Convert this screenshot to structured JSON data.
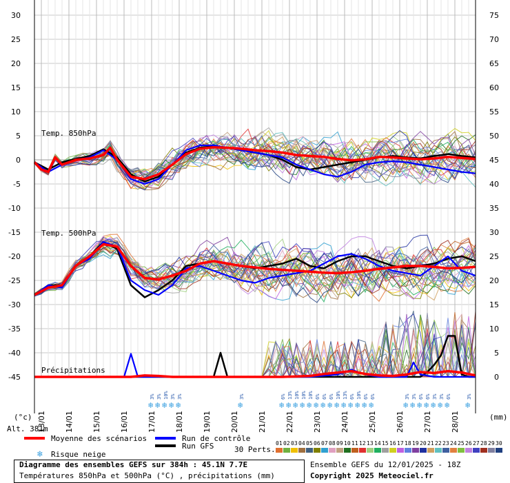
{
  "chart_data": {
    "type": "line",
    "y_left_ticks": [
      "30",
      "25",
      "20",
      "15",
      "10",
      "5",
      "0",
      "-5",
      "-10",
      "-15",
      "-20",
      "-25",
      "-30",
      "-35",
      "-40",
      "-45"
    ],
    "y_right_ticks": [
      "75",
      "70",
      "65",
      "60",
      "55",
      "50",
      "45",
      "40",
      "35",
      "30",
      "25",
      "20",
      "15",
      "10",
      "5",
      "0"
    ],
    "y_left_unit": "(°c)",
    "y_right_unit": "(mm)",
    "altitude_label": "Alt. 381m",
    "dates": [
      "13/01",
      "14/01",
      "15/01",
      "16/01",
      "17/01",
      "18/01",
      "19/01",
      "20/01",
      "21/01",
      "22/01",
      "23/01",
      "24/01",
      "25/01",
      "26/01",
      "27/01",
      "28/01"
    ],
    "section_labels": {
      "t850": "Temp. 850hPa",
      "t500": "Temp. 500hPa",
      "precip": "Précipitations"
    },
    "ylim_temp": [
      -45,
      30
    ],
    "ylim_precip": [
      0,
      75
    ],
    "x_hours": [
      0,
      384
    ],
    "series": [
      {
        "name": "Moyenne des scénarios",
        "color": "#ff0000",
        "group": "t850",
        "x": [
          0,
          6,
          12,
          18,
          24,
          36,
          48,
          60,
          66,
          72,
          84,
          96,
          108,
          120,
          132,
          144,
          156,
          168,
          180,
          192,
          204,
          216,
          228,
          240,
          252,
          264,
          276,
          288,
          300,
          312,
          324,
          336,
          348,
          360,
          372,
          384
        ],
        "y": [
          -0.5,
          -2,
          -2.5,
          0.5,
          -1,
          0,
          0.3,
          1,
          2.5,
          0,
          -3.5,
          -4,
          -3,
          -1,
          1.2,
          2.3,
          2.6,
          2.5,
          2.3,
          2,
          1.8,
          1.5,
          1,
          0.8,
          0.6,
          0.2,
          -0.1,
          0.1,
          0.6,
          0.5,
          0.3,
          0.1,
          0.3,
          0.6,
          0.4,
          0.2
        ]
      },
      {
        "name": "Run de contrôle",
        "color": "#0000ff",
        "group": "t850",
        "x": [
          0,
          12,
          24,
          36,
          48,
          60,
          72,
          84,
          96,
          108,
          120,
          132,
          144,
          156,
          168,
          180,
          192,
          204,
          216,
          228,
          240,
          252,
          264,
          276,
          288,
          300,
          312,
          324,
          336,
          348,
          360,
          372,
          384
        ],
        "y": [
          -0.5,
          -2.5,
          -1,
          0,
          0.5,
          2,
          0,
          -4,
          -5,
          -4,
          -1,
          2,
          3,
          3,
          2.5,
          2,
          1.5,
          1,
          0.5,
          -1,
          -2,
          -3,
          -3.5,
          -2.5,
          -1,
          -0.5,
          -0.3,
          -0.5,
          -1,
          -1.5,
          -2,
          -2.5,
          -2.8
        ]
      },
      {
        "name": "Run GFS",
        "color": "#000000",
        "group": "t850",
        "x": [
          0,
          12,
          24,
          36,
          48,
          60,
          72,
          84,
          96,
          108,
          120,
          132,
          144,
          156,
          168,
          180,
          192,
          204,
          216,
          228,
          240,
          252,
          264,
          276,
          288,
          300,
          312,
          324,
          336,
          348,
          360,
          372,
          384
        ],
        "y": [
          -0.5,
          -2,
          -0.5,
          0.2,
          0.8,
          2.2,
          0.5,
          -3,
          -4.5,
          -3.5,
          -1,
          1.5,
          2.5,
          2.8,
          2.5,
          2,
          1.5,
          1,
          0,
          -1.5,
          -2,
          -1.5,
          -1,
          -0.5,
          0,
          0.5,
          0.8,
          0.5,
          0.3,
          0.8,
          1.2,
          0.8,
          0.5
        ]
      },
      {
        "name": "Moyenne des scénarios",
        "color": "#ff0000",
        "group": "t500",
        "x": [
          0,
          12,
          24,
          36,
          48,
          60,
          72,
          84,
          96,
          108,
          120,
          132,
          144,
          156,
          168,
          180,
          192,
          204,
          216,
          228,
          240,
          252,
          264,
          276,
          288,
          300,
          312,
          324,
          336,
          348,
          360,
          372,
          384
        ],
        "y": [
          -28,
          -26.5,
          -26,
          -22,
          -20,
          -17.5,
          -18,
          -22,
          -24.5,
          -24.8,
          -24,
          -23,
          -21.5,
          -21,
          -21.5,
          -22,
          -22.3,
          -22.6,
          -22.8,
          -23,
          -23.2,
          -23.4,
          -23.5,
          -23.3,
          -23,
          -22.6,
          -22.3,
          -22,
          -22,
          -22.2,
          -22.5,
          -22.4,
          -22.2
        ]
      },
      {
        "name": "Run de contrôle",
        "color": "#0000ff",
        "group": "t500",
        "x": [
          0,
          12,
          24,
          36,
          48,
          60,
          72,
          84,
          96,
          108,
          120,
          132,
          144,
          156,
          168,
          180,
          192,
          204,
          216,
          228,
          240,
          252,
          264,
          276,
          288,
          300,
          312,
          324,
          336,
          348,
          360,
          372,
          384
        ],
        "y": [
          -28,
          -26,
          -26.5,
          -22,
          -20.5,
          -17,
          -18,
          -25,
          -27,
          -28,
          -26,
          -22.5,
          -22,
          -23,
          -24,
          -25,
          -25.5,
          -24.5,
          -24,
          -23.5,
          -23,
          -21.5,
          -20,
          -19.5,
          -20.5,
          -22,
          -23,
          -23.5,
          -24,
          -22,
          -20,
          -23,
          -24
        ]
      },
      {
        "name": "Run GFS",
        "color": "#000000",
        "group": "t500",
        "x": [
          0,
          12,
          24,
          36,
          48,
          60,
          72,
          84,
          96,
          108,
          120,
          132,
          144,
          156,
          168,
          180,
          192,
          204,
          216,
          228,
          240,
          252,
          264,
          276,
          288,
          300,
          312,
          324,
          336,
          348,
          360,
          372,
          384
        ],
        "y": [
          -28,
          -26,
          -26,
          -22,
          -20,
          -17,
          -18.5,
          -26,
          -28.5,
          -27,
          -25,
          -22,
          -21.5,
          -21,
          -21.5,
          -22,
          -22.5,
          -22,
          -21.5,
          -20.5,
          -22,
          -22.5,
          -21,
          -20,
          -20,
          -21,
          -22,
          -22.5,
          -22,
          -21.5,
          -20.5,
          -20,
          -21
        ]
      },
      {
        "name": "Moyenne des scénarios",
        "color": "#ff0000",
        "group": "precip",
        "x": [
          0,
          48,
          72,
          84,
          96,
          108,
          120,
          144,
          168,
          192,
          216,
          240,
          252,
          264,
          276,
          288,
          300,
          312,
          324,
          336,
          348,
          360,
          372,
          384
        ],
        "y": [
          0,
          0,
          0,
          0,
          0.3,
          0.2,
          0,
          0,
          0,
          0,
          0,
          0.2,
          0.6,
          0.9,
          1.2,
          0.6,
          0.3,
          0.2,
          0.5,
          1.0,
          0.8,
          1.2,
          0.9,
          0.3
        ]
      },
      {
        "name": "Run de contrôle",
        "color": "#0000ff",
        "group": "precip",
        "x": [
          0,
          72,
          78,
          84,
          90,
          96,
          144,
          168,
          216,
          240,
          264,
          276,
          288,
          300,
          312,
          324,
          330,
          336,
          348,
          360,
          372,
          384
        ],
        "y": [
          0,
          0,
          0,
          4.8,
          0,
          0,
          0,
          0,
          0,
          0,
          0.5,
          1.5,
          0.5,
          0,
          0,
          0,
          3,
          0.5,
          0,
          0,
          0,
          0
        ]
      },
      {
        "name": "Run GFS",
        "color": "#000000",
        "group": "precip",
        "x": [
          0,
          144,
          156,
          162,
          168,
          180,
          192,
          240,
          324,
          330,
          336,
          342,
          348,
          354,
          360,
          366,
          372,
          378,
          384
        ],
        "y": [
          0,
          0,
          0,
          5,
          0,
          0,
          0,
          0,
          0,
          0,
          0,
          1,
          2.5,
          4.5,
          8.5,
          8.5,
          0.5,
          0,
          0
        ]
      }
    ],
    "snow_risk": [
      {
        "h": 102,
        "pct": "3%"
      },
      {
        "h": 108,
        "pct": "3%"
      },
      {
        "h": 114,
        "pct": "10%"
      },
      {
        "h": 120,
        "pct": "3%"
      },
      {
        "h": 126,
        "pct": "3%"
      },
      {
        "h": 180,
        "pct": "3%"
      },
      {
        "h": 216,
        "pct": "6%"
      },
      {
        "h": 222,
        "pct": "13%"
      },
      {
        "h": 228,
        "pct": "10%"
      },
      {
        "h": 234,
        "pct": "10%"
      },
      {
        "h": 240,
        "pct": "10%"
      },
      {
        "h": 246,
        "pct": "6%"
      },
      {
        "h": 252,
        "pct": "6%"
      },
      {
        "h": 258,
        "pct": "6%"
      },
      {
        "h": 264,
        "pct": "10%"
      },
      {
        "h": 270,
        "pct": "13%"
      },
      {
        "h": 276,
        "pct": "6%"
      },
      {
        "h": 282,
        "pct": "10%"
      },
      {
        "h": 288,
        "pct": "6%"
      },
      {
        "h": 294,
        "pct": "6%"
      },
      {
        "h": 324,
        "pct": "3%"
      },
      {
        "h": 330,
        "pct": "3%"
      },
      {
        "h": 336,
        "pct": "6%"
      },
      {
        "h": 342,
        "pct": "6%"
      },
      {
        "h": 348,
        "pct": "3%"
      },
      {
        "h": 354,
        "pct": "3%"
      },
      {
        "h": 360,
        "pct": "6%"
      },
      {
        "h": 378,
        "pct": "3%"
      }
    ],
    "legend": {
      "mean": "Moyenne des scénarios",
      "control": "Run de contrôle",
      "gfs": "Run GFS",
      "snow": "Risque neige",
      "perts": "30 Perts."
    },
    "perts": {
      "labels": [
        "01",
        "02",
        "03",
        "04",
        "05",
        "06",
        "07",
        "08",
        "09",
        "10",
        "11",
        "12",
        "13",
        "14",
        "15",
        "16",
        "17",
        "18",
        "19",
        "20",
        "21",
        "22",
        "23",
        "24",
        "25",
        "26",
        "27",
        "28",
        "29",
        "30"
      ],
      "colors": [
        "#e07030",
        "#70b040",
        "#f0c000",
        "#a07040",
        "#406080",
        "#808000",
        "#30a0d0",
        "#e0a0c0",
        "#c0a080",
        "#207020",
        "#c06020",
        "#e03030",
        "#a0d080",
        "#20b060",
        "#a0a0a0",
        "#d0d020",
        "#c060e0",
        "#6080e0",
        "#8040a0",
        "#2030a0",
        "#d0a060",
        "#60c0c0",
        "#4060a0",
        "#e08040",
        "#80c040",
        "#c080e0",
        "#4040c0",
        "#a03020",
        "#8080a0",
        "#204080"
      ]
    }
  },
  "footer": {
    "title": "Diagramme des ensembles GEFS sur 384h : 45.1N 7.7E",
    "subtitle": "Températures 850hPa et 500hPa (°C) , précipitations (mm)",
    "run": "Ensemble GEFS du 12/01/2025 - 18Z",
    "copyright": "Copyright 2025 Meteociel.fr"
  }
}
